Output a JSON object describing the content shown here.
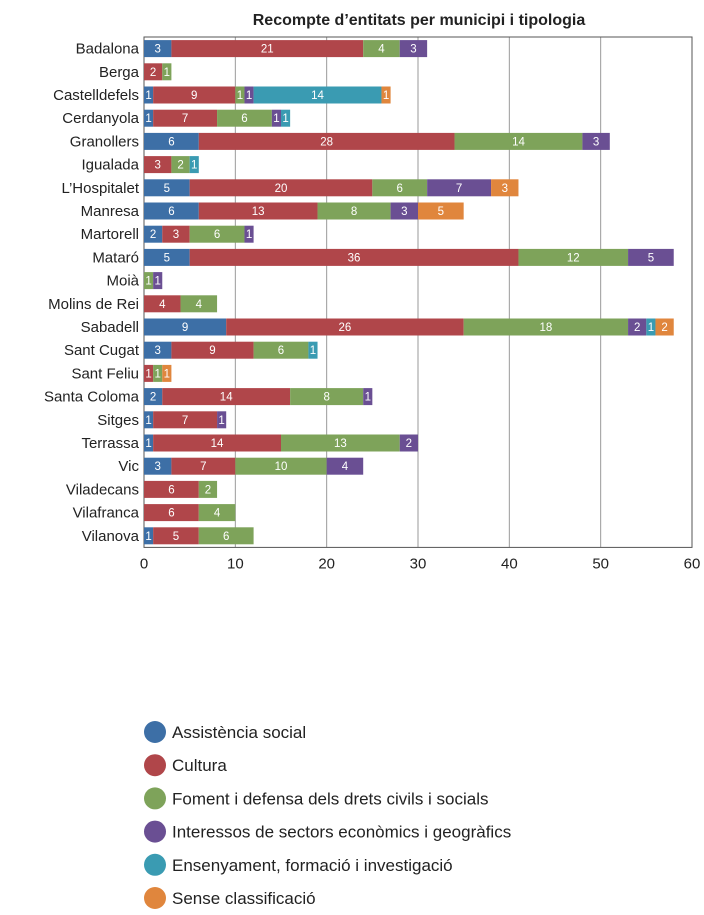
{
  "chart_data": {
    "type": "bar",
    "orientation": "horizontal",
    "stacked": true,
    "title": "Recompte d’entitats per municipi i tipologia",
    "xlabel": "",
    "ylabel": "",
    "xlim": [
      0,
      60
    ],
    "xticks": [
      "0",
      "10",
      "20",
      "30",
      "40",
      "50",
      "60"
    ],
    "grid": true,
    "legend_position": "bottom",
    "categories": [
      "Badalona",
      "Berga",
      "Castelldefels",
      "Cerdanyola",
      "Granollers",
      "Igualada",
      "L’Hospitalet",
      "Manresa",
      "Martorell",
      "Mataró",
      "Moià",
      "Molins de Rei",
      "Sabadell",
      "Sant Cugat",
      "Sant Feliu",
      "Santa Coloma",
      "Sitges",
      "Terrassa",
      "Vic",
      "Viladecans",
      "Vilafranca",
      "Vilanova"
    ],
    "series": [
      {
        "name": "Assistència social",
        "color": "#3d6fa6",
        "values": [
          3,
          0,
          1,
          1,
          6,
          0,
          5,
          6,
          2,
          5,
          0,
          0,
          9,
          3,
          0,
          2,
          1,
          1,
          3,
          0,
          0,
          1
        ]
      },
      {
        "name": "Cultura",
        "color": "#b0464a",
        "values": [
          21,
          2,
          9,
          7,
          28,
          3,
          20,
          13,
          3,
          36,
          0,
          4,
          26,
          9,
          1,
          14,
          7,
          14,
          7,
          6,
          6,
          5
        ]
      },
      {
        "name": "Foment i defensa dels drets civils i socials",
        "color": "#7ea35a",
        "values": [
          4,
          1,
          1,
          6,
          14,
          2,
          6,
          8,
          6,
          12,
          1,
          4,
          18,
          6,
          1,
          8,
          0,
          13,
          10,
          2,
          4,
          6
        ]
      },
      {
        "name": "Interessos de sectors econòmics i geogràfics",
        "color": "#6a4f93",
        "values": [
          3,
          0,
          1,
          1,
          3,
          0,
          7,
          3,
          1,
          5,
          1,
          0,
          2,
          0,
          0,
          1,
          1,
          2,
          4,
          0,
          0,
          0
        ]
      },
      {
        "name": "Ensenyament, formació i investigació",
        "color": "#3a9bb2",
        "values": [
          0,
          0,
          14,
          1,
          0,
          1,
          0,
          0,
          0,
          0,
          0,
          0,
          1,
          1,
          0,
          0,
          0,
          0,
          0,
          0,
          0,
          0
        ]
      },
      {
        "name": "Sense classificació",
        "color": "#e0863d",
        "values": [
          0,
          0,
          1,
          0,
          0,
          0,
          3,
          5,
          0,
          0,
          0,
          0,
          2,
          0,
          1,
          0,
          0,
          0,
          0,
          0,
          0,
          0
        ]
      }
    ]
  }
}
